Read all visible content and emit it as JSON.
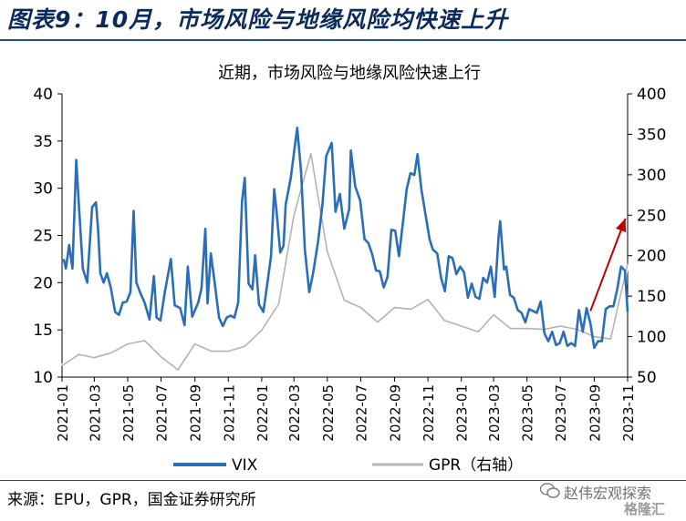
{
  "figure": {
    "title": "图表9：10月，市场风险与地缘风险均快速上升",
    "source": "来源：EPU，GPR，国金证券研究所",
    "watermark_text": "赵伟宏观探索",
    "watermark_brand": "格隆汇"
  },
  "chart_data": {
    "type": "line",
    "title": "近期，市场风险与地缘风险快速上行",
    "x_ticks": [
      "2021-01",
      "2021-03",
      "2021-05",
      "2021-07",
      "2021-09",
      "2021-11",
      "2022-01",
      "2022-03",
      "2022-05",
      "2022-07",
      "2022-09",
      "2022-11",
      "2023-01",
      "2023-03",
      "2023-05",
      "2023-07",
      "2023-09",
      "2023-11"
    ],
    "x_range": [
      "2021-01-01",
      "2023-11-01"
    ],
    "y_left": {
      "ylim": [
        10,
        40
      ],
      "ticks": [
        10,
        15,
        20,
        25,
        30,
        35,
        40
      ]
    },
    "y_right": {
      "ylim": [
        50,
        400
      ],
      "ticks": [
        50,
        100,
        150,
        200,
        250,
        300,
        350,
        400
      ]
    },
    "grid": false,
    "legend_position": "bottom",
    "series": [
      {
        "name": "VIX",
        "axis": "left",
        "color": "#2a6db8",
        "points": [
          [
            "2021-01-04",
            22.5
          ],
          [
            "2021-01-08",
            21.5
          ],
          [
            "2021-01-14",
            24.0
          ],
          [
            "2021-01-20",
            21.5
          ],
          [
            "2021-01-27",
            33.0
          ],
          [
            "2021-02-01",
            28.0
          ],
          [
            "2021-02-08",
            21.5
          ],
          [
            "2021-02-16",
            20.0
          ],
          [
            "2021-02-25",
            28.0
          ],
          [
            "2021-03-04",
            28.5
          ],
          [
            "2021-03-08",
            25.5
          ],
          [
            "2021-03-12",
            21.0
          ],
          [
            "2021-03-18",
            20.0
          ],
          [
            "2021-03-24",
            21.0
          ],
          [
            "2021-03-31",
            19.5
          ],
          [
            "2021-04-08",
            16.9
          ],
          [
            "2021-04-15",
            16.6
          ],
          [
            "2021-04-22",
            17.9
          ],
          [
            "2021-04-29",
            18.0
          ],
          [
            "2021-05-06",
            19.0
          ],
          [
            "2021-05-12",
            27.6
          ],
          [
            "2021-05-17",
            20.0
          ],
          [
            "2021-05-25",
            18.8
          ],
          [
            "2021-06-01",
            17.9
          ],
          [
            "2021-06-10",
            16.1
          ],
          [
            "2021-06-18",
            20.7
          ],
          [
            "2021-06-23",
            16.3
          ],
          [
            "2021-06-30",
            16.0
          ],
          [
            "2021-07-08",
            19.0
          ],
          [
            "2021-07-19",
            22.5
          ],
          [
            "2021-07-26",
            17.6
          ],
          [
            "2021-08-05",
            17.3
          ],
          [
            "2021-08-13",
            15.5
          ],
          [
            "2021-08-19",
            21.7
          ],
          [
            "2021-08-27",
            16.4
          ],
          [
            "2021-09-07",
            17.9
          ],
          [
            "2021-09-13",
            19.4
          ],
          [
            "2021-09-20",
            25.7
          ],
          [
            "2021-09-24",
            17.8
          ],
          [
            "2021-09-30",
            23.1
          ],
          [
            "2021-10-07",
            20.0
          ],
          [
            "2021-10-15",
            16.3
          ],
          [
            "2021-10-22",
            15.4
          ],
          [
            "2021-10-29",
            16.3
          ],
          [
            "2021-11-05",
            16.5
          ],
          [
            "2021-11-12",
            16.3
          ],
          [
            "2021-11-19",
            17.9
          ],
          [
            "2021-11-26",
            28.6
          ],
          [
            "2021-12-01",
            31.1
          ],
          [
            "2021-12-08",
            19.9
          ],
          [
            "2021-12-15",
            19.3
          ],
          [
            "2021-12-20",
            22.9
          ],
          [
            "2021-12-27",
            17.7
          ],
          [
            "2022-01-04",
            16.9
          ],
          [
            "2022-01-10",
            19.4
          ],
          [
            "2022-01-18",
            22.8
          ],
          [
            "2022-01-24",
            29.9
          ],
          [
            "2022-01-28",
            27.7
          ],
          [
            "2022-02-04",
            23.2
          ],
          [
            "2022-02-10",
            23.9
          ],
          [
            "2022-02-14",
            28.3
          ],
          [
            "2022-02-23",
            31.0
          ],
          [
            "2022-03-07",
            36.4
          ],
          [
            "2022-03-14",
            31.8
          ],
          [
            "2022-03-21",
            23.5
          ],
          [
            "2022-03-29",
            19.0
          ],
          [
            "2022-04-05",
            21.0
          ],
          [
            "2022-04-14",
            24.3
          ],
          [
            "2022-04-22",
            28.2
          ],
          [
            "2022-04-29",
            33.4
          ],
          [
            "2022-05-09",
            34.8
          ],
          [
            "2022-05-16",
            27.5
          ],
          [
            "2022-05-24",
            29.4
          ],
          [
            "2022-06-01",
            25.7
          ],
          [
            "2022-06-10",
            27.8
          ],
          [
            "2022-06-13",
            34.0
          ],
          [
            "2022-06-21",
            30.2
          ],
          [
            "2022-06-30",
            28.7
          ],
          [
            "2022-07-08",
            24.6
          ],
          [
            "2022-07-15",
            24.2
          ],
          [
            "2022-07-22",
            23.0
          ],
          [
            "2022-07-29",
            21.3
          ],
          [
            "2022-08-05",
            21.2
          ],
          [
            "2022-08-12",
            19.5
          ],
          [
            "2022-08-19",
            20.6
          ],
          [
            "2022-08-26",
            25.6
          ],
          [
            "2022-09-02",
            25.5
          ],
          [
            "2022-09-09",
            22.8
          ],
          [
            "2022-09-16",
            26.3
          ],
          [
            "2022-09-23",
            29.9
          ],
          [
            "2022-09-30",
            31.6
          ],
          [
            "2022-10-07",
            31.4
          ],
          [
            "2022-10-13",
            33.6
          ],
          [
            "2022-10-20",
            29.9
          ],
          [
            "2022-10-27",
            27.4
          ],
          [
            "2022-11-04",
            24.6
          ],
          [
            "2022-11-10",
            23.5
          ],
          [
            "2022-11-18",
            23.1
          ],
          [
            "2022-11-25",
            20.5
          ],
          [
            "2022-12-02",
            19.1
          ],
          [
            "2022-12-09",
            22.8
          ],
          [
            "2022-12-16",
            22.6
          ],
          [
            "2022-12-23",
            20.9
          ],
          [
            "2022-12-30",
            21.7
          ],
          [
            "2023-01-06",
            21.1
          ],
          [
            "2023-01-13",
            18.4
          ],
          [
            "2023-01-20",
            19.9
          ],
          [
            "2023-01-27",
            18.5
          ],
          [
            "2023-02-03",
            18.3
          ],
          [
            "2023-02-10",
            20.5
          ],
          [
            "2023-02-17",
            20.0
          ],
          [
            "2023-02-24",
            21.7
          ],
          [
            "2023-03-03",
            18.5
          ],
          [
            "2023-03-10",
            24.8
          ],
          [
            "2023-03-13",
            26.5
          ],
          [
            "2023-03-20",
            21.4
          ],
          [
            "2023-03-24",
            21.7
          ],
          [
            "2023-03-31",
            18.7
          ],
          [
            "2023-04-07",
            18.4
          ],
          [
            "2023-04-14",
            17.1
          ],
          [
            "2023-04-21",
            16.8
          ],
          [
            "2023-04-28",
            15.8
          ],
          [
            "2023-05-05",
            17.2
          ],
          [
            "2023-05-12",
            17.0
          ],
          [
            "2023-05-19",
            16.8
          ],
          [
            "2023-05-26",
            18.0
          ],
          [
            "2023-06-02",
            14.6
          ],
          [
            "2023-06-09",
            13.8
          ],
          [
            "2023-06-16",
            14.8
          ],
          [
            "2023-06-23",
            13.4
          ],
          [
            "2023-06-30",
            13.6
          ],
          [
            "2023-07-07",
            14.8
          ],
          [
            "2023-07-14",
            13.3
          ],
          [
            "2023-07-21",
            13.6
          ],
          [
            "2023-07-28",
            13.3
          ],
          [
            "2023-08-04",
            17.1
          ],
          [
            "2023-08-11",
            14.8
          ],
          [
            "2023-08-18",
            17.3
          ],
          [
            "2023-08-25",
            15.7
          ],
          [
            "2023-09-01",
            13.1
          ],
          [
            "2023-09-08",
            13.8
          ],
          [
            "2023-09-15",
            13.8
          ],
          [
            "2023-09-22",
            17.2
          ],
          [
            "2023-09-29",
            17.5
          ],
          [
            "2023-10-06",
            17.5
          ],
          [
            "2023-10-13",
            19.3
          ],
          [
            "2023-10-20",
            21.7
          ],
          [
            "2023-10-27",
            21.3
          ],
          [
            "2023-11-01",
            16.9
          ]
        ]
      },
      {
        "name": "GPR（右轴）",
        "axis": "right",
        "color": "#b3b3b3",
        "points": [
          [
            "2021-01-01",
            64
          ],
          [
            "2021-02-01",
            78
          ],
          [
            "2021-03-01",
            74
          ],
          [
            "2021-04-01",
            80
          ],
          [
            "2021-05-01",
            91
          ],
          [
            "2021-06-01",
            95
          ],
          [
            "2021-07-01",
            75
          ],
          [
            "2021-08-01",
            59
          ],
          [
            "2021-09-01",
            91
          ],
          [
            "2021-10-01",
            82
          ],
          [
            "2021-11-01",
            82
          ],
          [
            "2021-12-01",
            88
          ],
          [
            "2022-01-01",
            108
          ],
          [
            "2022-02-01",
            140
          ],
          [
            "2022-03-01",
            250
          ],
          [
            "2022-04-01",
            326
          ],
          [
            "2022-05-01",
            205
          ],
          [
            "2022-06-01",
            145
          ],
          [
            "2022-07-01",
            136
          ],
          [
            "2022-08-01",
            118
          ],
          [
            "2022-09-01",
            136
          ],
          [
            "2022-10-01",
            134
          ],
          [
            "2022-11-01",
            146
          ],
          [
            "2022-12-01",
            120
          ],
          [
            "2023-01-01",
            113
          ],
          [
            "2023-02-01",
            106
          ],
          [
            "2023-03-01",
            127
          ],
          [
            "2023-04-01",
            110
          ],
          [
            "2023-05-01",
            110
          ],
          [
            "2023-06-01",
            109
          ],
          [
            "2023-07-01",
            113
          ],
          [
            "2023-08-01",
            109
          ],
          [
            "2023-09-01",
            100
          ],
          [
            "2023-10-01",
            97
          ],
          [
            "2023-11-01",
            190
          ]
        ]
      }
    ],
    "annotation": {
      "type": "arrow",
      "color": "#c00000",
      "from": [
        "2023-08-25",
        17.0
      ],
      "to": [
        "2023-10-28",
        26.8
      ]
    }
  }
}
